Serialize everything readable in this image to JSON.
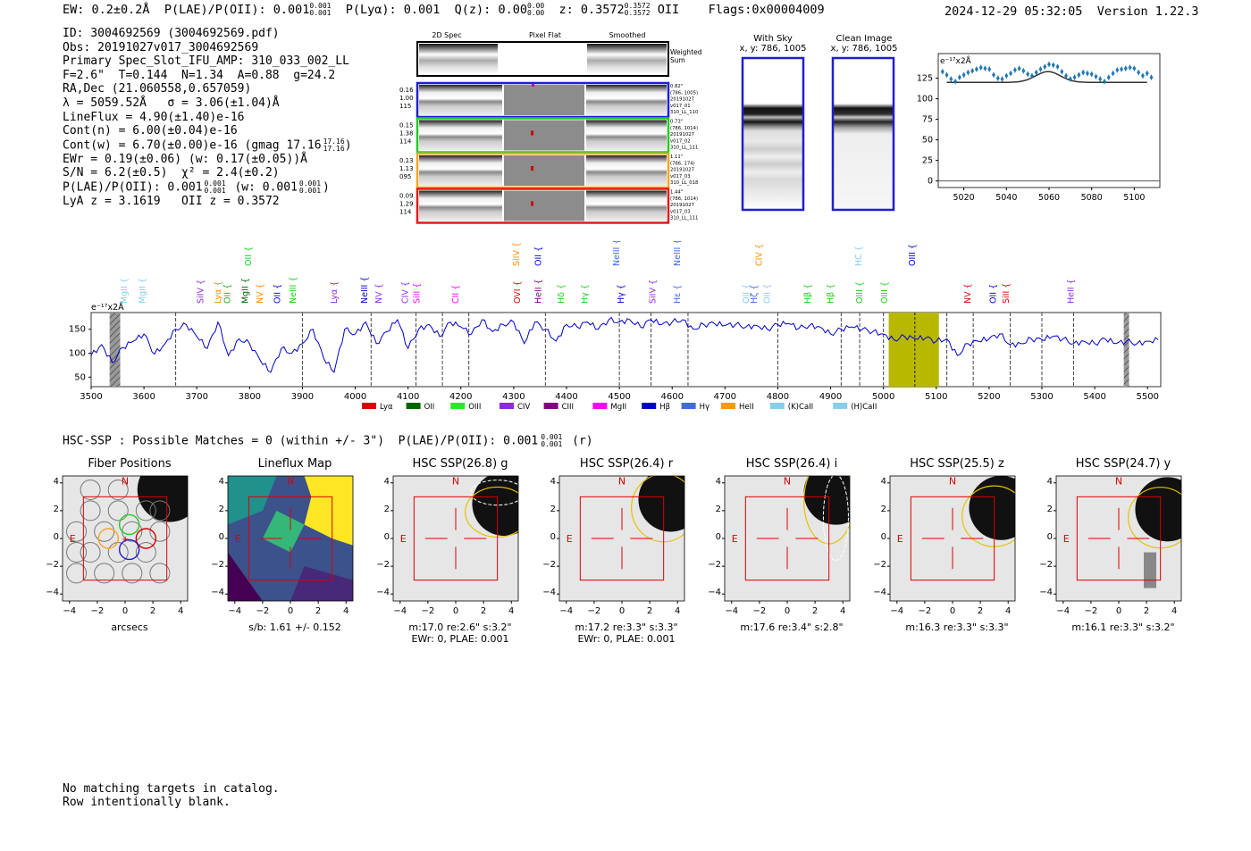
{
  "header": {
    "ew": "EW: 0.2±0.2Å",
    "plae": "P(LAE)/P(OII): 0.001",
    "plae_sup": "0.001",
    "plae_sub": "0.001",
    "plya": "P(Lyα): 0.001",
    "qz": "Q(z): 0.00",
    "qz_sup": "0.00",
    "qz_sub": "0.00",
    "z": "z: 0.3572",
    "z_sup": "0.3572",
    "z_sub": "0.3572",
    "z_line": "OII",
    "flags": "Flags:0x00004009",
    "date": "2024-12-29 05:32:05",
    "version": "Version 1.22.3"
  },
  "info": {
    "l1": "ID: 3004692569 (3004692569.pdf)",
    "l2": "Obs: 20191027v017_3004692569",
    "l3": "Primary Spec_Slot_IFU_AMP: 310_033_002_LL",
    "l4": "F=2.6\"  T=0.144  N=1.34  A=0.88  g=24.2",
    "l5": "RA,Dec (21.060558,0.657059)",
    "l6": "λ = 5059.52Å   σ = 3.06(±1.04)Å",
    "l7": "LineFlux = 4.90(±1.40)e-16",
    "l8": "Cont(n) = 6.00(±0.04)e-16",
    "l9": "Cont(w) = 6.70(±0.00)e-16 (gmag 17.16",
    "l9_sup": "17.16",
    "l9_sub": "17.16",
    "l9_end": ")",
    "l10": "EWr = 0.19(±0.06) (w: 0.17(±0.05))Å",
    "l11": "S/N = 6.2(±0.5)  χ² = 2.4(±0.2)",
    "l12a": "P(LAE)/P(OII): 0.001",
    "l12_sup": "0.001",
    "l12_sub": "0.001",
    "l12b": "(w: 0.001",
    "l12_sup2": "0.001",
    "l12_sub2": "0.001",
    "l12c": ")",
    "l13": "LyA z = 3.1619   OII z = 0.3572"
  },
  "cutouts": {
    "col_headers": [
      "2D Spec",
      "Pixel Flat",
      "Smoothed"
    ],
    "weighted_sum": "Weighted\nSum",
    "rows": [
      {
        "left": [
          "0.16",
          "1.00",
          "115"
        ],
        "right": [
          "0.82\"",
          "(786, 1005)",
          "20191027",
          "v017_01",
          "310_LL_110"
        ],
        "color": "#1f1fd0"
      },
      {
        "left": [
          "0.15",
          "1.38",
          "114"
        ],
        "right": [
          "0.73\"",
          "(786, 1014)",
          "20191027",
          "v017_02",
          "310_LL_111"
        ],
        "color": "#22cc22"
      },
      {
        "left": [
          "0.13",
          "1.13",
          "095"
        ],
        "right": [
          "1.11\"",
          "(786, 174)",
          "20191027",
          "v017_03",
          "310_LL_018"
        ],
        "color": "#f5a623"
      },
      {
        "left": [
          "0.09",
          "1.29",
          "114"
        ],
        "right": [
          "1.44\"",
          "(786, 1014)",
          "20191027",
          "v017_03",
          "310_LL_111"
        ],
        "color": "#e41a1a"
      }
    ]
  },
  "sky": {
    "with_sky_title": "With Sky",
    "with_sky_xy": "x, y: 786, 1005",
    "clean_title": "Clean Image",
    "clean_xy": "x, y: 786, 1005"
  },
  "chart_data": [
    {
      "type": "scatter",
      "name": "zoom-line-fit",
      "ylabel": "e⁻¹⁷x2Å",
      "xlim": [
        5008,
        5112
      ],
      "ylim": [
        -8,
        155
      ],
      "xticks": [
        5020,
        5040,
        5060,
        5080,
        5100
      ],
      "yticks": [
        0,
        25,
        50,
        75,
        100,
        125
      ],
      "points_x": [
        5010,
        5012,
        5014,
        5016,
        5018,
        5020,
        5022,
        5024,
        5026,
        5028,
        5030,
        5032,
        5034,
        5036,
        5038,
        5040,
        5042,
        5044,
        5046,
        5048,
        5050,
        5052,
        5054,
        5056,
        5058,
        5060,
        5062,
        5064,
        5066,
        5068,
        5070,
        5072,
        5074,
        5076,
        5078,
        5080,
        5082,
        5084,
        5086,
        5088,
        5090,
        5092,
        5094,
        5096,
        5098,
        5100,
        5102,
        5104,
        5106,
        5108
      ],
      "points_y": [
        133,
        129,
        124,
        121,
        126,
        129,
        132,
        134,
        136,
        138,
        137,
        136,
        129,
        125,
        124,
        128,
        131,
        135,
        137,
        134,
        130,
        128,
        132,
        136,
        139,
        142,
        141,
        139,
        133,
        128,
        124,
        126,
        129,
        132,
        131,
        130,
        127,
        124,
        121,
        126,
        131,
        135,
        136,
        137,
        138,
        137,
        132,
        128,
        131,
        126
      ],
      "model": {
        "continuum": 120,
        "center": 5059.52,
        "sigma": 3.06,
        "amplitude": 13
      }
    },
    {
      "type": "line",
      "name": "full-spectrum",
      "ylabel": "e⁻¹⁷x2Å",
      "xlim": [
        3500,
        5525
      ],
      "ylim": [
        30,
        185
      ],
      "xticks": [
        3500,
        3600,
        3700,
        3800,
        3900,
        4000,
        4100,
        4200,
        4300,
        4400,
        4500,
        4600,
        4700,
        4800,
        4900,
        5000,
        5100,
        5200,
        5300,
        5400,
        5500
      ],
      "yticks": [
        50,
        100,
        150
      ],
      "wavelengths": [
        3500,
        3520,
        3540,
        3560,
        3580,
        3600,
        3620,
        3640,
        3660,
        3680,
        3700,
        3720,
        3740,
        3760,
        3780,
        3800,
        3820,
        3840,
        3860,
        3880,
        3900,
        3920,
        3940,
        3960,
        3980,
        4000,
        4020,
        4040,
        4060,
        4080,
        4100,
        4120,
        4140,
        4160,
        4180,
        4200,
        4220,
        4240,
        4260,
        4280,
        4300,
        4320,
        4340,
        4360,
        4380,
        4400,
        4420,
        4440,
        4460,
        4480,
        4500,
        4520,
        4540,
        4560,
        4580,
        4600,
        4620,
        4640,
        4660,
        4680,
        4700,
        4720,
        4740,
        4760,
        4780,
        4800,
        4820,
        4840,
        4860,
        4880,
        4900,
        4920,
        4940,
        4960,
        4980,
        5000,
        5020,
        5040,
        5060,
        5080,
        5100,
        5120,
        5140,
        5160,
        5180,
        5200,
        5220,
        5240,
        5260,
        5280,
        5300,
        5320,
        5340,
        5360,
        5380,
        5400,
        5420,
        5440,
        5460,
        5480,
        5500,
        5520
      ],
      "flux": [
        95,
        118,
        80,
        112,
        125,
        140,
        98,
        120,
        150,
        160,
        135,
        110,
        165,
        95,
        130,
        120,
        85,
        60,
        110,
        100,
        120,
        150,
        90,
        60,
        150,
        140,
        165,
        120,
        145,
        170,
        110,
        150,
        160,
        135,
        165,
        155,
        140,
        170,
        145,
        160,
        165,
        120,
        165,
        150,
        125,
        160,
        155,
        165,
        150,
        170,
        165,
        170,
        155,
        170,
        160,
        165,
        170,
        150,
        160,
        162,
        158,
        160,
        155,
        158,
        150,
        160,
        162,
        152,
        158,
        155,
        140,
        150,
        155,
        150,
        145,
        140,
        128,
        135,
        130,
        132,
        125,
        130,
        95,
        120,
        125,
        130,
        140,
        118,
        120,
        130,
        128,
        135,
        130,
        120,
        125,
        120,
        130,
        120,
        125,
        120,
        125,
        128
      ],
      "highlight_range": [
        5010,
        5105
      ],
      "center_line": 5059.52,
      "hatched_ranges": [
        [
          3535,
          3555
        ],
        [
          5455,
          5465
        ]
      ],
      "dashed_lines": [
        3660,
        3900,
        4030,
        4115,
        4165,
        4215,
        4360,
        4500,
        4560,
        4630,
        4800,
        4920,
        4955,
        5000,
        5120,
        5170,
        5240,
        5300,
        5360
      ],
      "line_labels": [
        {
          "text": "MgII",
          "x": 3568,
          "color": "#87ceeb",
          "row": 1
        },
        {
          "text": "MgII",
          "x": 3602,
          "color": "#87ceeb",
          "row": 1
        },
        {
          "text": "SiIV",
          "x": 3712,
          "color": "#8a2be2",
          "row": 1
        },
        {
          "text": "Lyα",
          "x": 3745,
          "color": "#ff8c00",
          "row": 1
        },
        {
          "text": "OII",
          "x": 3763,
          "color": "#22aa22",
          "row": 1
        },
        {
          "text": "MgII",
          "x": 3797,
          "color": "#006400",
          "row": 1
        },
        {
          "text": "NV",
          "x": 3825,
          "color": "#ff8c00",
          "row": 1
        },
        {
          "text": "OII",
          "x": 3858,
          "color": "#0000cd",
          "row": 1
        },
        {
          "text": "NeIII",
          "x": 3887,
          "color": "#22cc22",
          "row": 1
        },
        {
          "text": "OII",
          "x": 3803,
          "color": "#22cc22",
          "row": 0
        },
        {
          "text": "Lyα",
          "x": 3965,
          "color": "#8a2be2",
          "row": 1
        },
        {
          "text": "NeIII",
          "x": 4023,
          "color": "#0000cd",
          "row": 1
        },
        {
          "text": "NV",
          "x": 4050,
          "color": "#8a2be2",
          "row": 1
        },
        {
          "text": "CIV",
          "x": 4100,
          "color": "#8a2be2",
          "row": 1
        },
        {
          "text": "SiII",
          "x": 4122,
          "color": "#ff00ff",
          "row": 1
        },
        {
          "text": "CII",
          "x": 4195,
          "color": "#ff00ff",
          "row": 1
        },
        {
          "text": "SiIV",
          "x": 4310,
          "color": "#ff8c00",
          "row": 0
        },
        {
          "text": "OVI",
          "x": 4312,
          "color": "#dd0000",
          "row": 1
        },
        {
          "text": "HeII",
          "x": 4352,
          "color": "#800080",
          "row": 1
        },
        {
          "text": "OII",
          "x": 4352,
          "color": "#0000cd",
          "row": 0
        },
        {
          "text": "Hδ",
          "x": 4395,
          "color": "#22cc22",
          "row": 1
        },
        {
          "text": "Hγ",
          "x": 4440,
          "color": "#22cc22",
          "row": 1
        },
        {
          "text": "NeIII",
          "x": 4500,
          "color": "#4169e1",
          "row": 0
        },
        {
          "text": "Hγ",
          "x": 4508,
          "color": "#0000cd",
          "row": 1
        },
        {
          "text": "SiIV",
          "x": 4568,
          "color": "#8a2be2",
          "row": 1
        },
        {
          "text": "NeIII",
          "x": 4615,
          "color": "#4169e1",
          "row": 0
        },
        {
          "text": "Hε",
          "x": 4615,
          "color": "#4169e1",
          "row": 1
        },
        {
          "text": "CIV",
          "x": 4770,
          "color": "#ff8c00",
          "row": 0
        },
        {
          "text": "OII",
          "x": 4745,
          "color": "#87ceeb",
          "row": 1
        },
        {
          "text": "Hζ",
          "x": 4760,
          "color": "#4169e1",
          "row": 1
        },
        {
          "text": "OII",
          "x": 4785,
          "color": "#87ceeb",
          "row": 1
        },
        {
          "text": "Hβ",
          "x": 4862,
          "color": "#22cc22",
          "row": 1
        },
        {
          "text": "Hβ",
          "x": 4905,
          "color": "#22cc22",
          "row": 1
        },
        {
          "text": "HC",
          "x": 4958,
          "color": "#87ceeb",
          "row": 0
        },
        {
          "text": "OIII",
          "x": 4960,
          "color": "#22cc22",
          "row": 1
        },
        {
          "text": "OIII",
          "x": 5007,
          "color": "#22cc22",
          "row": 1
        },
        {
          "text": "OIII",
          "x": 5060,
          "color": "#0000cd",
          "row": 0
        },
        {
          "text": "NV",
          "x": 5165,
          "color": "#dd0000",
          "row": 1
        },
        {
          "text": "OII",
          "x": 5213,
          "color": "#0000cd",
          "row": 1
        },
        {
          "text": "SiII",
          "x": 5237,
          "color": "#dd0000",
          "row": 1
        },
        {
          "text": "HeII",
          "x": 5360,
          "color": "#8a2be2",
          "row": 1
        }
      ],
      "legend": [
        {
          "label": "Lyα",
          "color": "#dd0000"
        },
        {
          "label": "OII",
          "color": "#006400"
        },
        {
          "label": "OIII",
          "color": "#22ee22"
        },
        {
          "label": "CIV",
          "color": "#8a2be2"
        },
        {
          "label": "CIII",
          "color": "#800080"
        },
        {
          "label": "MgII",
          "color": "#ff00ff"
        },
        {
          "label": "Hβ",
          "color": "#0000cd"
        },
        {
          "label": "Hγ",
          "color": "#4169e1"
        },
        {
          "label": "HeII",
          "color": "#ff9900"
        },
        {
          "label": "(K)CaII",
          "color": "#87ceeb"
        },
        {
          "label": "(H)CaII",
          "color": "#87ceeb"
        }
      ]
    }
  ],
  "matches": {
    "line": "HSC-SSP : Possible Matches = 0 (within +/- 3\")  P(LAE)/P(OII): 0.001",
    "sup": "0.001",
    "sub": "0.001",
    "end": "(r)"
  },
  "panels": [
    {
      "title": "Fiber Positions",
      "cap1": "arcsecs",
      "cap2": ""
    },
    {
      "title": "Lineflux Map",
      "cap1": "s/b: 1.61 +/- 0.152",
      "cap2": ""
    },
    {
      "title": "HSC SSP(26.8) g",
      "cap1": "m:17.0  re:2.6\"  s:3.2\"",
      "cap2": "EWr: 0, PLAE: 0.001"
    },
    {
      "title": "HSC SSP(26.4) r",
      "cap1": "m:17.2  re:3.3\"  s:3.3\"",
      "cap2": "EWr: 0, PLAE: 0.001"
    },
    {
      "title": "HSC SSP(26.4) i",
      "cap1": "m:17.6  re:3.4\"  s:2.8\"",
      "cap2": ""
    },
    {
      "title": "HSC SSP(25.5) z",
      "cap1": "m:16.3  re:3.3\"  s:3.3\"",
      "cap2": ""
    },
    {
      "title": "HSC SSP(24.7) y",
      "cap1": "m:16.1  re:3.3\"  s:3.2\"",
      "cap2": ""
    }
  ],
  "panel_axes": {
    "ticks": [
      -4,
      -2,
      0,
      2,
      4
    ],
    "n_label": "N",
    "e_label": "E"
  },
  "footer": {
    "l1": "No matching targets in catalog.",
    "l2": "Row intentionally blank."
  },
  "colors": {
    "spectrum": "#0000cc",
    "highlight": "#b8b800",
    "model": "#333333",
    "points": "#1f77b4",
    "box": "#dd0000",
    "ellipse": "#e6c200"
  }
}
